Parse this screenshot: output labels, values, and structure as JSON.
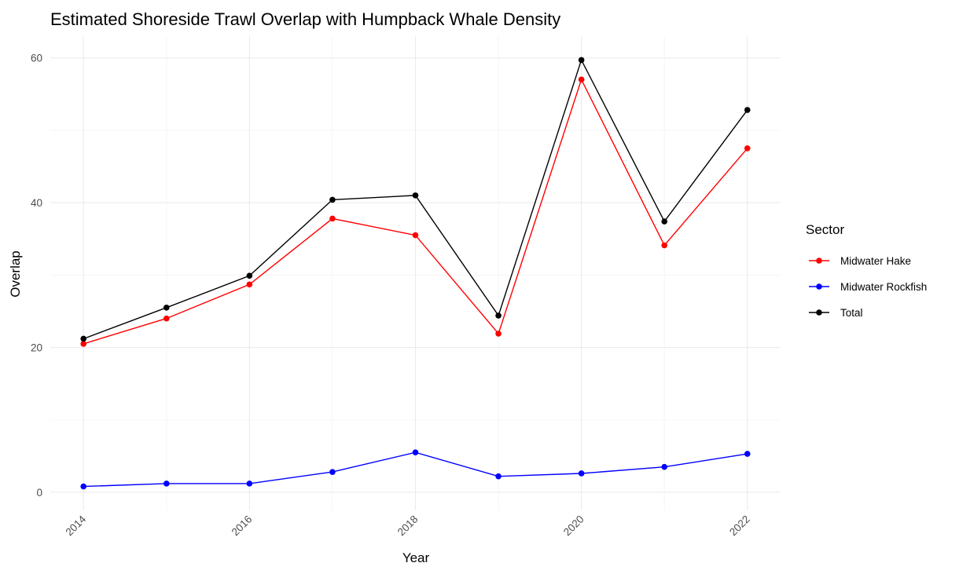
{
  "chart_data": {
    "type": "line",
    "title": "Estimated Shoreside Trawl Overlap with Humpback Whale Density",
    "xlabel": "Year",
    "ylabel": "Overlap",
    "x": [
      2014,
      2015,
      2016,
      2017,
      2018,
      2019,
      2020,
      2021,
      2022
    ],
    "x_ticks": [
      "2014",
      "2016",
      "2018",
      "2020",
      "2022"
    ],
    "y_ticks": [
      "0",
      "20",
      "40",
      "60"
    ],
    "xlim": [
      2013.6,
      2022.4
    ],
    "ylim": [
      -2.5,
      63
    ],
    "grid": true,
    "legend": {
      "title": "Sector",
      "position": "right"
    },
    "series": [
      {
        "name": "Midwater Hake",
        "color": "#ff0000",
        "values": [
          20.5,
          24.0,
          28.7,
          37.8,
          35.5,
          21.9,
          57.0,
          34.1,
          47.5
        ]
      },
      {
        "name": "Midwater Rockfish",
        "color": "#0000ff",
        "values": [
          0.8,
          1.2,
          1.2,
          2.8,
          5.5,
          2.2,
          2.6,
          3.5,
          5.3
        ]
      },
      {
        "name": "Total",
        "color": "#000000",
        "values": [
          21.2,
          25.5,
          29.9,
          40.4,
          41.0,
          24.4,
          59.7,
          37.4,
          52.8
        ]
      }
    ]
  }
}
